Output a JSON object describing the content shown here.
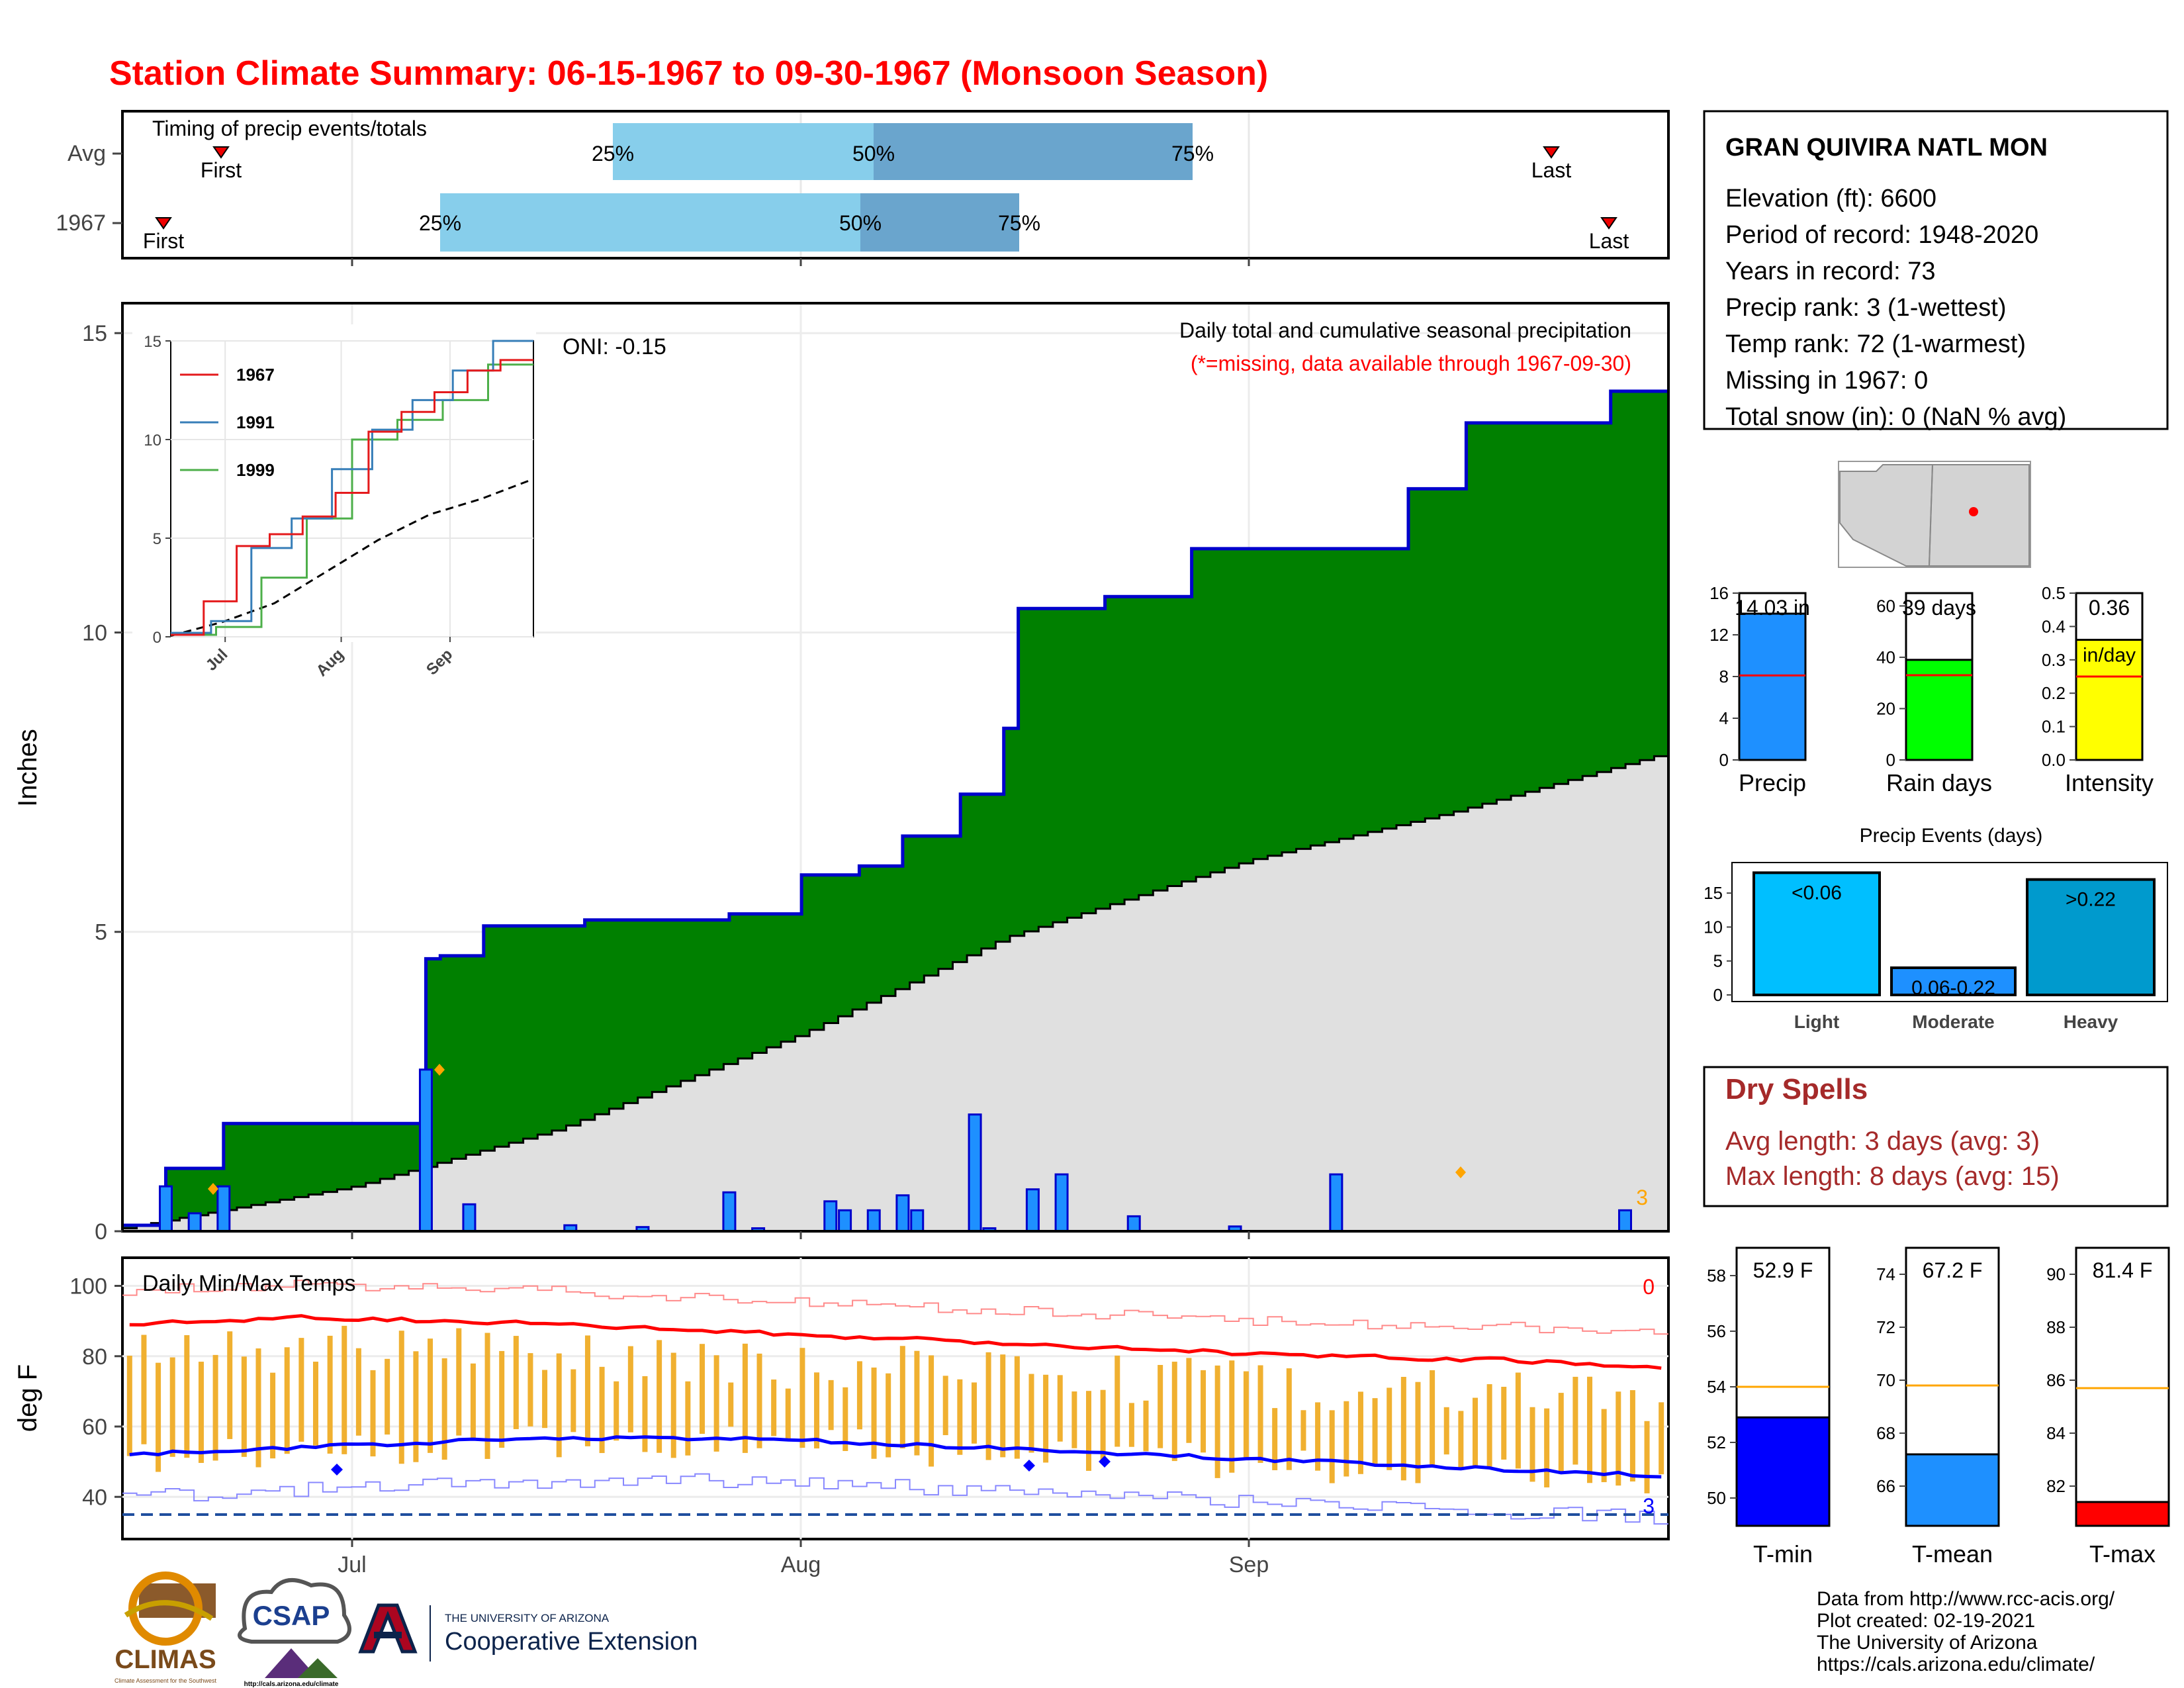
{
  "title": "Station Climate Summary: 06-15-1967 to 09-30-1967 (Monsoon Season)",
  "timing": {
    "label": "Timing of precip events/totals",
    "rows": [
      "Avg",
      "1967"
    ],
    "first_label": "First",
    "last_label": "Last",
    "pct_labels": [
      "25%",
      "50%",
      "75%"
    ]
  },
  "main": {
    "y_label": "Inches",
    "oni": "ONI: -0.15",
    "subtitle1": "Daily total and cumulative seasonal precipitation",
    "subtitle2": "(*=missing, data available through 1967-09-30)",
    "count_label": "3",
    "x_ticks": [
      "Jul",
      "Aug",
      "Sep"
    ],
    "y_ticks": [
      "0",
      "5",
      "10",
      "15"
    ]
  },
  "inset": {
    "legend": [
      "1967",
      "1991",
      "1999"
    ],
    "colors": [
      "#e41a1c",
      "#377eb8",
      "#4daf4a"
    ],
    "x_ticks": [
      "Jul",
      "Aug",
      "Sep"
    ],
    "y_ticks": [
      "0",
      "5",
      "10",
      "15"
    ]
  },
  "temps": {
    "label": "Daily Min/Max Temps",
    "y_label": "deg F",
    "y_ticks": [
      "40",
      "60",
      "80",
      "100"
    ],
    "count_hi": "0",
    "count_lo": "3"
  },
  "station": {
    "name": "GRAN QUIVIRA NATL MON",
    "lines": [
      "Elevation (ft): 6600",
      "Period of record: 1948-2020",
      "Years in record: 73",
      "Precip rank: 3 (1-wettest)",
      "Temp rank: 72 (1-warmest)",
      "Missing in 1967: 0",
      "Total snow (in): 0 (NaN % avg)"
    ]
  },
  "bars": [
    {
      "label": "Precip",
      "value_text": "14.03 in",
      "value": 14.03,
      "avg": 8.1,
      "ymax": 16,
      "ticks": [
        "0",
        "4",
        "8",
        "12",
        "16"
      ],
      "color": "#1e90ff"
    },
    {
      "label": "Rain days",
      "value_text": "39 days",
      "value": 39,
      "avg": 33,
      "ymax": 65,
      "ticks": [
        "0",
        "20",
        "40",
        "60"
      ],
      "color": "#00ff00"
    },
    {
      "label": "Intensity",
      "value_text": "0.36",
      "value_text2": "in/day",
      "value": 0.36,
      "avg": 0.25,
      "ymax": 0.5,
      "ticks": [
        "0.0",
        "0.1",
        "0.2",
        "0.3",
        "0.4",
        "0.5"
      ],
      "color": "#ffff00"
    }
  ],
  "events": {
    "title": "Precip Events (days)",
    "categories": [
      "Light",
      "Moderate",
      "Heavy"
    ],
    "labels": [
      "<0.06",
      "0.06-0.22",
      ">0.22"
    ],
    "values": [
      18,
      4,
      17
    ],
    "colors": [
      "#00bfff",
      "#1e90ff",
      "#009acd"
    ],
    "ticks": [
      "0",
      "5",
      "10",
      "15"
    ]
  },
  "dry": {
    "title": "Dry Spells",
    "avg": "Avg length: 3 days (avg: 3)",
    "max": "Max length: 8 days (avg: 15)"
  },
  "tbars": [
    {
      "label": "T-min",
      "value_text": "52.9 F",
      "value": 52.9,
      "avg": 54.0,
      "ymin": 49,
      "ymax": 59,
      "ticks": [
        "50",
        "52",
        "54",
        "56",
        "58"
      ],
      "color": "#0000ff"
    },
    {
      "label": "T-mean",
      "value_text": "67.2 F",
      "value": 67.2,
      "avg": 69.8,
      "ymin": 64.5,
      "ymax": 75,
      "ticks": [
        "66",
        "68",
        "70",
        "72",
        "74"
      ],
      "color": "#1e90ff"
    },
    {
      "label": "T-max",
      "value_text": "81.4 F",
      "value": 81.4,
      "avg": 85.7,
      "ymin": 80.5,
      "ymax": 91,
      "ticks": [
        "82",
        "84",
        "86",
        "88",
        "90"
      ],
      "color": "#ff0000"
    }
  ],
  "footer": {
    "lines": [
      "Data from http://www.rcc-acis.org/",
      "Plot created: 02-19-2021",
      "The University of Arizona",
      "https://cals.arizona.edu/climate/"
    ],
    "logos": [
      "CLIMAS",
      "CSAP",
      "THE UNIVERSITY OF ARIZONA",
      "Cooperative Extension"
    ],
    "logo_small": [
      "http://cals.arizona.edu/climate",
      "Climate Assessment for the Southwest"
    ]
  },
  "chart_data": [
    {
      "type": "area",
      "title": "Daily total and cumulative seasonal precipitation",
      "ylabel": "Inches",
      "ylim": [
        0,
        15
      ],
      "x_start": "1967-06-15",
      "x_end": "1967-09-30",
      "series": [
        {
          "name": "",
          "x": [
            "1967-06-15",
            "1967-06-18",
            "1967-06-22",
            "1967-07-06",
            "1967-07-07",
            "1967-07-10",
            "1967-07-17",
            "1967-07-27",
            "1967-08-01",
            "1967-08-05",
            "1967-08-08",
            "1967-08-12",
            "1967-08-15",
            "1967-08-16",
            "1967-08-22",
            "1967-08-28",
            "1967-09-12",
            "1967-09-16",
            "1967-09-26",
            "1967-09-30"
          ],
          "values": [
            0.1,
            1.05,
            1.8,
            4.55,
            4.6,
            5.1,
            5.2,
            5.3,
            5.95,
            6.1,
            6.6,
            7.3,
            8.4,
            10.4,
            10.6,
            11.4,
            12.4,
            13.5,
            14.03,
            14.03
          ]
        },
        {
          "name": "",
          "x": [
            "1967-06-15",
            "1967-07-01",
            "1967-07-15",
            "1967-08-01",
            "1967-08-15",
            "1967-09-01",
            "1967-09-15",
            "1967-09-30"
          ],
          "values": [
            0.05,
            0.75,
            1.7,
            3.3,
            4.9,
            6.2,
            7.0,
            8.0
          ]
        }
      ],
      "daily_precip": {
        "x": [
          "06-18",
          "06-20",
          "06-22",
          "07-06",
          "07-09",
          "07-16",
          "07-21",
          "07-27",
          "07-29",
          "08-03",
          "08-04",
          "08-06",
          "08-08",
          "08-09",
          "08-13",
          "08-14",
          "08-17",
          "08-19",
          "08-24",
          "08-31",
          "09-07",
          "09-27"
        ],
        "values": [
          0.75,
          0.3,
          0.75,
          2.7,
          0.45,
          0.1,
          0.07,
          0.65,
          0.05,
          0.5,
          0.35,
          0.35,
          0.6,
          0.35,
          1.95,
          0.05,
          0.7,
          0.95,
          0.25,
          0.08,
          0.95,
          0.35
        ]
      }
    },
    {
      "type": "line",
      "xlim": [
        "1967-06-15",
        "1967-09-30"
      ],
      "ylim": [
        0,
        15
      ],
      "series": [
        {
          "name": "1967",
          "values": [
            0.1,
            1.8,
            4.6,
            5.2,
            6.1,
            7.3,
            10.4,
            11.4,
            12.4,
            13.5,
            14.03
          ]
        },
        {
          "name": "1991",
          "values": [
            0.2,
            0.8,
            4.5,
            6.0,
            8.5,
            10.5,
            12.0,
            13.5,
            15.0
          ]
        },
        {
          "name": "1999",
          "values": [
            0.1,
            0.5,
            3.0,
            6.0,
            10.0,
            11.0,
            12.0,
            13.8
          ]
        },
        {
          "name": "",
          "values": [
            0.05,
            0.75,
            1.7,
            3.3,
            4.9,
            6.2,
            7.0,
            8.0
          ]
        }
      ]
    },
    {
      "type": "line",
      "title": "Daily Min/Max Temps",
      "ylabel": "deg F",
      "ylim": [
        28,
        108
      ],
      "series": [
        {
          "name": "",
          "values": [
            89,
            91,
            90,
            88,
            86,
            84,
            82,
            80,
            79,
            77
          ]
        },
        {
          "name": "",
          "values": [
            52,
            54,
            56,
            57,
            56,
            54,
            52,
            50,
            48,
            46
          ]
        }
      ]
    }
  ]
}
